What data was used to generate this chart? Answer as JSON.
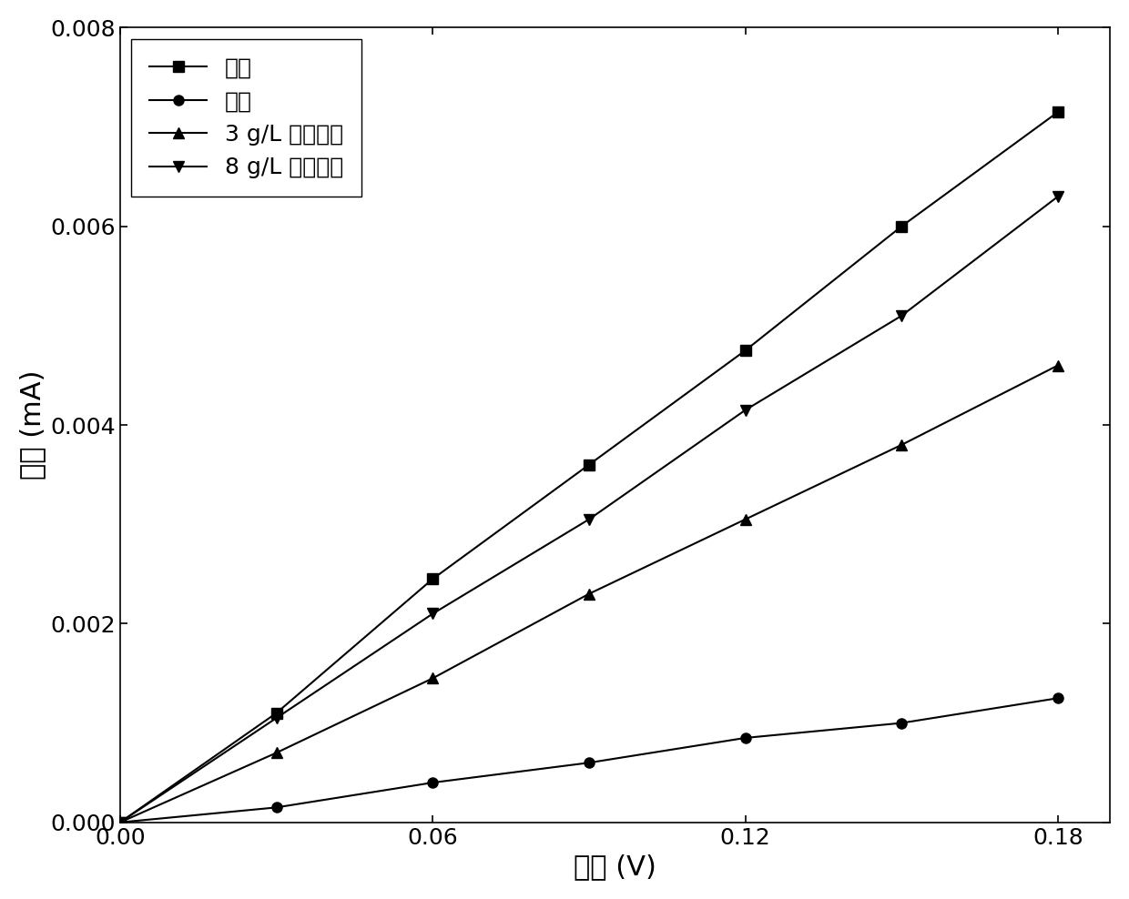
{
  "series": [
    {
      "label": "纯水",
      "x": [
        0.0,
        0.03,
        0.06,
        0.09,
        0.12,
        0.15,
        0.18
      ],
      "y": [
        0.0,
        0.0011,
        0.00245,
        0.0036,
        0.00475,
        0.006,
        0.00715
      ],
      "marker": "s",
      "color": "#000000"
    },
    {
      "label": "原水",
      "x": [
        0.0,
        0.03,
        0.06,
        0.09,
        0.12,
        0.15,
        0.18
      ],
      "y": [
        0.0,
        0.00015,
        0.0004,
        0.0006,
        0.00085,
        0.001,
        0.00125
      ],
      "marker": "o",
      "color": "#000000"
    },
    {
      "label": "3 g/L 三氯化铁",
      "x": [
        0.0,
        0.03,
        0.06,
        0.09,
        0.12,
        0.15,
        0.18
      ],
      "y": [
        0.0,
        0.0007,
        0.00145,
        0.0023,
        0.00305,
        0.0038,
        0.0046
      ],
      "marker": "^",
      "color": "#000000"
    },
    {
      "label": "8 g/L 三氯化铁",
      "x": [
        0.0,
        0.03,
        0.06,
        0.09,
        0.12,
        0.15,
        0.18
      ],
      "y": [
        0.0,
        0.00105,
        0.0021,
        0.00305,
        0.00415,
        0.0051,
        0.0063
      ],
      "marker": "v",
      "color": "#000000"
    }
  ],
  "xlabel": "电压 (V)",
  "ylabel": "电流 (mA)",
  "xlim": [
    0.0,
    0.19
  ],
  "ylim": [
    0.0,
    0.008
  ],
  "xticks": [
    0.0,
    0.06,
    0.12,
    0.18
  ],
  "yticks": [
    0.0,
    0.002,
    0.004,
    0.006,
    0.008
  ],
  "legend_loc": "upper left",
  "background_color": "#ffffff",
  "linewidth": 1.5,
  "markersize": 8,
  "label_fontsize": 22,
  "tick_fontsize": 18,
  "legend_fontsize": 18
}
